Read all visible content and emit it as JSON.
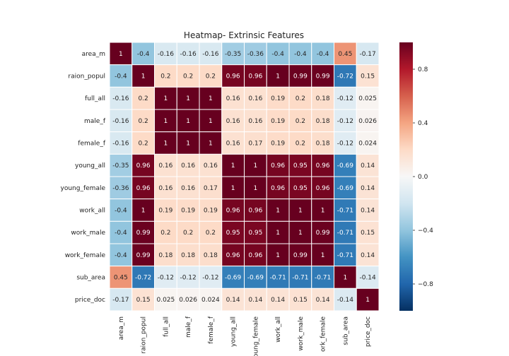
{
  "chart_data": {
    "type": "heatmap",
    "title": "Heatmap- Extrinsic Features",
    "xlabel": "",
    "ylabel": "",
    "rows": [
      "area_m",
      "raion_popul",
      "full_all",
      "male_f",
      "female_f",
      "young_all",
      "young_female",
      "work_all",
      "work_male",
      "work_female",
      "sub_area",
      "price_doc"
    ],
    "columns": [
      "area_m",
      "raion_popul",
      "full_all",
      "male_f",
      "female_f",
      "young_all",
      "young_female",
      "work_all",
      "work_male",
      "work_female",
      "sub_area",
      "price_doc"
    ],
    "column_labels_as_shown": [
      "area_m",
      "raion_popul",
      "full_all",
      "male_f",
      "female_f",
      "young_all",
      "oung_female",
      "work_all",
      "work_male",
      "ork_female",
      "sub_area",
      "price_doc"
    ],
    "values": [
      [
        1,
        -0.4,
        -0.16,
        -0.16,
        -0.16,
        -0.35,
        -0.36,
        -0.4,
        -0.4,
        -0.4,
        0.45,
        -0.17
      ],
      [
        -0.4,
        1,
        0.2,
        0.2,
        0.2,
        0.96,
        0.96,
        1,
        0.99,
        0.99,
        -0.72,
        0.15
      ],
      [
        -0.16,
        0.2,
        1,
        1,
        1,
        0.16,
        0.16,
        0.19,
        0.2,
        0.18,
        -0.12,
        0.025
      ],
      [
        -0.16,
        0.2,
        1,
        1,
        1,
        0.16,
        0.16,
        0.19,
        0.2,
        0.18,
        -0.12,
        0.026
      ],
      [
        -0.16,
        0.2,
        1,
        1,
        1,
        0.16,
        0.17,
        0.19,
        0.2,
        0.18,
        -0.12,
        0.024
      ],
      [
        -0.35,
        0.96,
        0.16,
        0.16,
        0.16,
        1,
        1,
        0.96,
        0.95,
        0.96,
        -0.69,
        0.14
      ],
      [
        -0.36,
        0.96,
        0.16,
        0.16,
        0.17,
        1,
        1,
        0.96,
        0.95,
        0.96,
        -0.69,
        0.14
      ],
      [
        -0.4,
        1,
        0.19,
        0.19,
        0.19,
        0.96,
        0.96,
        1,
        1,
        1,
        -0.71,
        0.14
      ],
      [
        -0.4,
        0.99,
        0.2,
        0.2,
        0.2,
        0.95,
        0.95,
        1,
        1,
        0.99,
        -0.71,
        0.15
      ],
      [
        -0.4,
        0.99,
        0.18,
        0.18,
        0.18,
        0.96,
        0.96,
        1,
        0.99,
        1,
        -0.71,
        0.14
      ],
      [
        0.45,
        -0.72,
        -0.12,
        -0.12,
        -0.12,
        -0.69,
        -0.69,
        -0.71,
        -0.71,
        -0.71,
        1,
        -0.14
      ],
      [
        -0.17,
        0.15,
        0.025,
        0.026,
        0.024,
        0.14,
        0.14,
        0.14,
        0.15,
        0.14,
        -0.14,
        1
      ]
    ],
    "vmin": -1,
    "vmax": 1,
    "colormap": [
      "#053061",
      "#2166ac",
      "#4393c3",
      "#92c5de",
      "#d1e5f0",
      "#f7f7f7",
      "#fddbc7",
      "#f4a582",
      "#d6604d",
      "#b2182b",
      "#67001f"
    ],
    "colorbar": {
      "ticks": [
        0.8,
        0.4,
        0.0,
        -0.4,
        -0.8
      ],
      "tick_labels": [
        "0.8",
        "0.4",
        "0.0",
        "−0.4",
        "−0.8"
      ]
    },
    "annotation_light_color": "#ffffff",
    "annotation_dark_color": "#262626",
    "cell_border_color": "#ffffff"
  }
}
